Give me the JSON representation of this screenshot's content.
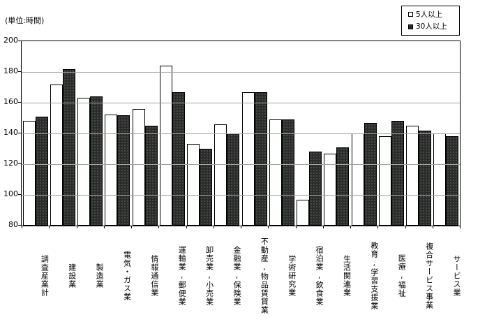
{
  "unit_label": "(単位:時間)",
  "legend": {
    "items": [
      {
        "label": "5人以上",
        "swatch": "#ffffff"
      },
      {
        "label": "30人以上",
        "swatch": "#2b2b2b"
      }
    ]
  },
  "chart_data": {
    "type": "bar",
    "title": "",
    "unit": "時間",
    "categories": [
      "調査産業計",
      "建設業",
      "製造業",
      "電気・ガス業",
      "情報通信業",
      "運輸業,郵便業",
      "卸売業,小売業",
      "金融業,保険業",
      "不動産,物品賃貸業",
      "学術研究業",
      "宿泊業,飲食業",
      "生活関連業",
      "教育,学習支援業",
      "医療,福祉",
      "複合サービス事業",
      "サービス業"
    ],
    "series": [
      {
        "name": "5人以上",
        "values": [
          148,
          172,
          163,
          152.5,
          156,
          184,
          133,
          146,
          167,
          149,
          97,
          127,
          140,
          138,
          145,
          140
        ]
      },
      {
        "name": "30人以上",
        "values": [
          151,
          182,
          164,
          152,
          145,
          167,
          130,
          140,
          167,
          149,
          128,
          131,
          147,
          148,
          142,
          138
        ]
      }
    ],
    "ylim": [
      80,
      200
    ],
    "yticks": [
      80,
      100,
      120,
      140,
      160,
      180,
      200
    ],
    "grid": true,
    "legend_position": "top-right",
    "colors": {
      "series1": "#ffffff",
      "series2": "#2b2b2b",
      "gridline": "#a3a3a3"
    }
  }
}
